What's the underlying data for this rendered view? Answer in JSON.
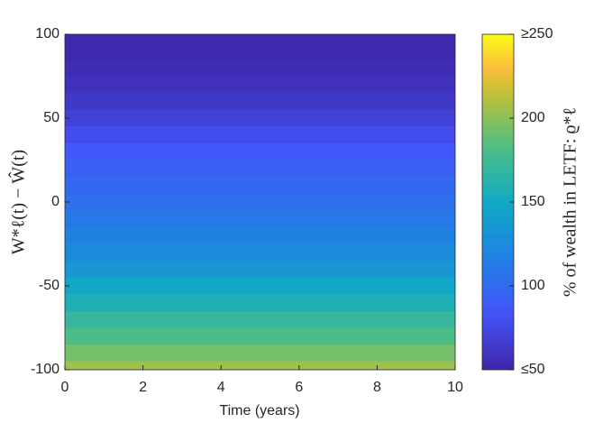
{
  "chart_data": {
    "type": "heatmap",
    "xlabel": "Time (years)",
    "ylabel": "W*ℓ(t) − Ŵ(t)",
    "colorbar_label": "% of wealth in LETF: ϱ*ℓ",
    "colormap": "parula",
    "xlim": [
      0,
      10
    ],
    "xticks": [
      0,
      2,
      4,
      6,
      8,
      10
    ],
    "ylim": [
      -100,
      100
    ],
    "yticks": [
      -100,
      -50,
      0,
      50,
      100
    ],
    "y": [
      100,
      90,
      80,
      70,
      60,
      50,
      40,
      30,
      20,
      10,
      0,
      -10,
      -20,
      -30,
      -40,
      -50,
      -60,
      -70,
      -80,
      -90,
      -100
    ],
    "values": [
      52,
      53,
      55,
      58,
      63,
      70,
      78,
      86,
      93,
      99,
      104,
      110,
      117,
      125,
      135,
      147,
      158,
      170,
      182,
      194,
      205
    ],
    "clim": [
      50,
      250
    ],
    "cticks": [
      {
        "value": 50,
        "label": "≤50"
      },
      100,
      150,
      200,
      {
        "value": 250,
        "label": "≥250"
      }
    ]
  }
}
